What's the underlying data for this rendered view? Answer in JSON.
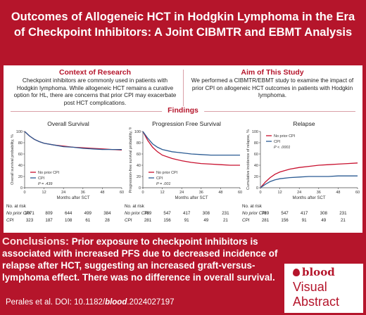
{
  "title": "Outcomes of Allogeneic HCT in Hodgkin Lymphoma in the Era of Checkpoint Inhibitors: A Joint CIBMTR and EBMT Analysis",
  "context": {
    "heading": "Context of Research",
    "text": "Checkpoint inhibitors are commonly used in patients with Hodgkin lymphoma. While allogeneic HCT remains a curative option for HL, there are concerns that prior CPI may exacerbate post HCT complications."
  },
  "aim": {
    "heading": "Aim of This Study",
    "text": "We performed a CIBMTR/EBMT study to examine the impact of prior CPI on allogeneic HCT outcomes in patients with Hodgkin lymphoma."
  },
  "findings_heading": "Findings",
  "colors": {
    "no_cpi": "#c8102e",
    "cpi": "#2b5b93",
    "brand": "#b5152b"
  },
  "chart_data": [
    {
      "type": "line",
      "title": "Overall Survival",
      "ylabel": "Overall survival probability, %",
      "xlabel": "Months after SCT",
      "x_ticks": [
        0,
        12,
        24,
        36,
        48,
        60
      ],
      "y_ticks": [
        0,
        20,
        40,
        60,
        80,
        100
      ],
      "xlim": [
        0,
        60
      ],
      "ylim": [
        0,
        100
      ],
      "legend": [
        "No prior CPI",
        "CPI"
      ],
      "p_value": "P = .439",
      "series": [
        {
          "name": "No prior CPI",
          "x": [
            0,
            3,
            6,
            9,
            12,
            18,
            24,
            30,
            36,
            42,
            48,
            54,
            60
          ],
          "y": [
            100,
            92,
            86,
            82,
            79,
            76,
            74,
            72,
            71,
            70,
            69,
            68,
            67
          ]
        },
        {
          "name": "CPI",
          "x": [
            0,
            3,
            6,
            9,
            12,
            18,
            24,
            30,
            36,
            42,
            48,
            54,
            60
          ],
          "y": [
            100,
            92,
            86,
            82,
            79,
            76,
            73,
            72,
            70,
            69,
            68,
            68,
            68
          ]
        }
      ],
      "at_risk": {
        "label": "No. at risk",
        "rows": [
          {
            "name": "No prior CPI",
            "values": [
              "1071",
              "809",
              "644",
              "499",
              "384"
            ]
          },
          {
            "name": "CPI",
            "values": [
              "323",
              "187",
              "108",
              "61",
              "28"
            ]
          }
        ]
      }
    },
    {
      "type": "line",
      "title": "Progression Free Survival",
      "ylabel": "Progression-free survival probability, %",
      "xlabel": "Months after SCT",
      "x_ticks": [
        0,
        12,
        24,
        36,
        48,
        60
      ],
      "y_ticks": [
        0,
        20,
        40,
        60,
        80,
        100
      ],
      "xlim": [
        0,
        60
      ],
      "ylim": [
        0,
        100
      ],
      "legend": [
        "No prior CPI",
        "CPI"
      ],
      "p_value": "P = .001",
      "series": [
        {
          "name": "No prior CPI",
          "x": [
            0,
            3,
            6,
            9,
            12,
            18,
            24,
            30,
            36,
            42,
            48,
            54,
            60
          ],
          "y": [
            100,
            84,
            72,
            64,
            58,
            52,
            48,
            45,
            43,
            42,
            41,
            40,
            40
          ]
        },
        {
          "name": "CPI",
          "x": [
            0,
            3,
            6,
            9,
            12,
            18,
            24,
            30,
            36,
            42,
            48,
            54,
            60
          ],
          "y": [
            100,
            88,
            78,
            72,
            68,
            64,
            62,
            60,
            59,
            58,
            58,
            58,
            58
          ]
        }
      ],
      "at_risk": {
        "label": "No. at risk",
        "rows": [
          {
            "name": "No prior CPI",
            "values": [
              "789",
              "547",
              "417",
              "308",
              "231"
            ]
          },
          {
            "name": "CPI",
            "values": [
              "281",
              "156",
              "91",
              "49",
              "21"
            ]
          }
        ]
      }
    },
    {
      "type": "line",
      "title": "Relapse",
      "ylabel": "Cumulative incidence of relapse, %",
      "xlabel": "Months after SCT",
      "x_ticks": [
        0,
        12,
        24,
        36,
        48,
        60
      ],
      "y_ticks": [
        0,
        20,
        40,
        60,
        80,
        100
      ],
      "xlim": [
        0,
        60
      ],
      "ylim": [
        0,
        100
      ],
      "legend": [
        "No prior CPI",
        "CPI"
      ],
      "p_value": "P < .0001",
      "series": [
        {
          "name": "No prior CPI",
          "x": [
            0,
            3,
            6,
            9,
            12,
            18,
            24,
            30,
            36,
            42,
            48,
            54,
            60
          ],
          "y": [
            0,
            10,
            18,
            24,
            28,
            33,
            36,
            38,
            40,
            41,
            42,
            43,
            44
          ]
        },
        {
          "name": "CPI",
          "x": [
            0,
            3,
            6,
            9,
            12,
            18,
            24,
            30,
            36,
            42,
            48,
            54,
            60
          ],
          "y": [
            0,
            6,
            11,
            14,
            16,
            18,
            19,
            20,
            20,
            20,
            21,
            21,
            21
          ]
        }
      ],
      "at_risk": {
        "label": "No. at risk",
        "rows": [
          {
            "name": "No prior CPI",
            "values": [
              "789",
              "547",
              "417",
              "308",
              "231"
            ]
          },
          {
            "name": "CPI",
            "values": [
              "281",
              "156",
              "91",
              "49",
              "21"
            ]
          }
        ]
      }
    }
  ],
  "conclusion": {
    "label": "Conclusions:",
    "text": "Prior exposure to checkpoint inhibitors is associated with increased PFS due to decreased incidence of relapse after HCT, suggesting an increased graft-versus-lymphoma effect. There was no difference in overall survival."
  },
  "citation": {
    "authors": "Perales et al. DOI: 10.1182/",
    "journal": "blood",
    "doi_suffix": ".2024027197"
  },
  "badge": {
    "logo": "blood",
    "line1": "Visual",
    "line2": "Abstract"
  }
}
